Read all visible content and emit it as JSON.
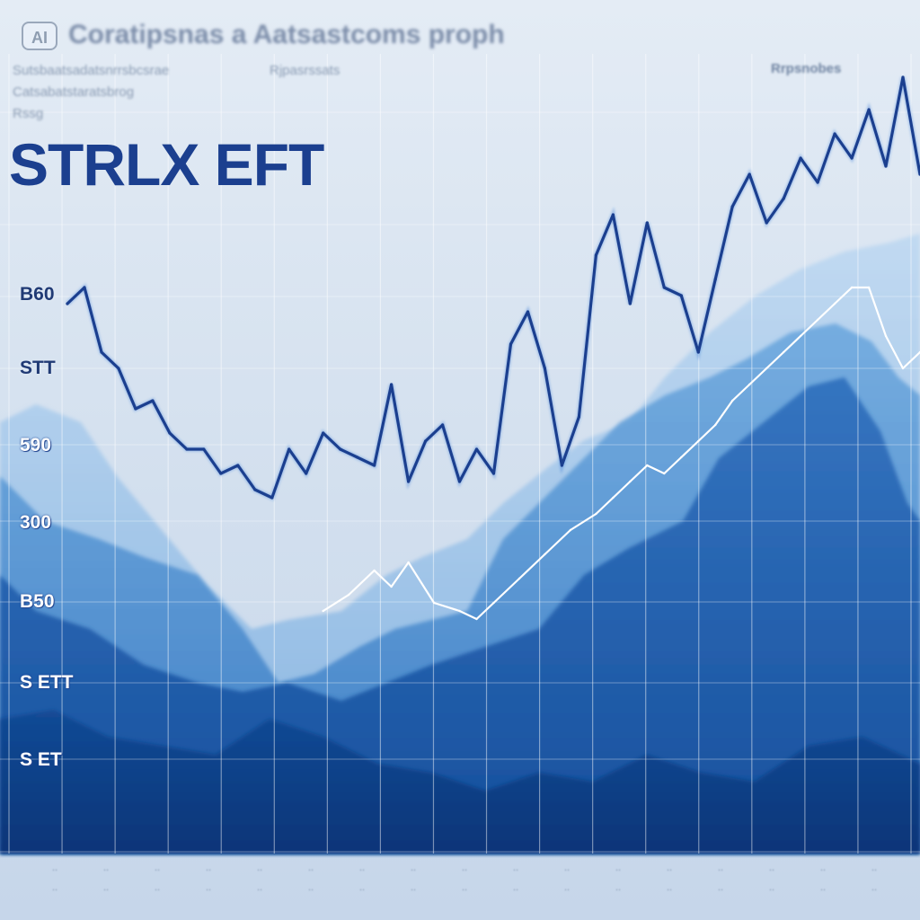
{
  "badge": "AI",
  "header": {
    "title": "Coratipsnas a Aatsastcoms proph",
    "lines": [
      "Sutsbaatsadatsnrrsbcsrae",
      "Catsabatstaratsbrog",
      "Rssg",
      "Rjpasrssats",
      "Rrpsnobes"
    ]
  },
  "brand": "STRLX EFT",
  "colors": {
    "main_line": "#1b3f8f",
    "accent_line": "#2f6fd3",
    "trend_line": "#ffffff",
    "area_light": "#9cc3ea",
    "area_mid": "#4f8fd0",
    "area_dark": "#1f5aa6",
    "area_deep": "#0c3d86"
  },
  "chart_data": {
    "type": "line",
    "title": "STRLX EFT",
    "xlabel": "",
    "ylabel": "",
    "y_tick_labels": [
      "B60",
      "STT",
      "590",
      "300",
      "B50",
      "S ETT",
      "S ET"
    ],
    "x_tick_labels": [
      "..",
      "..",
      "..",
      "..",
      "..",
      "..",
      "..",
      "..",
      "..",
      "..",
      "..",
      "..",
      "..",
      "..",
      "..",
      "..",
      "..",
      ".."
    ],
    "grid": true,
    "ylim": [
      0,
      100
    ],
    "series": [
      {
        "x": [
          0,
          2,
          4,
          6,
          8,
          10,
          12,
          14,
          16,
          18,
          20,
          22,
          24,
          26,
          28,
          30,
          32,
          34,
          36,
          38,
          40,
          42,
          44,
          46,
          48,
          50,
          52,
          54,
          56,
          58,
          60,
          62,
          64,
          66,
          68,
          70,
          72,
          74,
          76,
          78,
          80,
          82,
          84,
          86,
          88,
          90,
          92,
          94,
          96,
          98,
          100
        ],
        "values": [
          68,
          70,
          62,
          60,
          55,
          56,
          52,
          50,
          50,
          47,
          48,
          45,
          44,
          50,
          47,
          52,
          50,
          49,
          48,
          58,
          46,
          51,
          53,
          46,
          50,
          47,
          63,
          67,
          60,
          48,
          54,
          74,
          79,
          68,
          78,
          70,
          69,
          62,
          71,
          80,
          84,
          78,
          81,
          86,
          83,
          89,
          86,
          92,
          85,
          96,
          84
        ]
      },
      {
        "x": [
          30,
          33,
          36,
          38,
          40,
          43,
          46,
          48,
          50,
          53,
          56,
          59,
          62,
          64,
          66,
          68,
          70,
          72,
          74,
          76,
          78,
          80,
          82,
          84,
          86,
          88,
          90,
          92,
          94,
          96,
          98,
          100
        ],
        "values": [
          30,
          32,
          35,
          33,
          36,
          31,
          30,
          29,
          31,
          34,
          37,
          40,
          42,
          44,
          46,
          48,
          47,
          49,
          51,
          53,
          56,
          58,
          60,
          62,
          64,
          66,
          68,
          70,
          70,
          64,
          60,
          62
        ]
      }
    ]
  }
}
